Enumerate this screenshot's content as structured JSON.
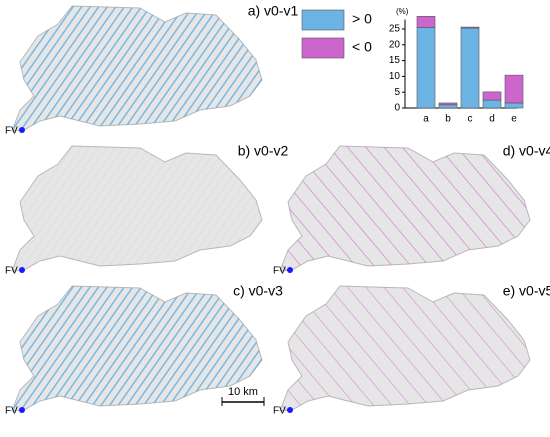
{
  "chart_data": {
    "type": "bar",
    "stacked": true,
    "y_unit": "(%)",
    "categories": [
      "a",
      "b",
      "c",
      "d",
      "e"
    ],
    "series": [
      {
        "name": "> 0",
        "color": "#6cb4e4",
        "values": [
          25.5,
          1.0,
          25.3,
          2.5,
          1.6
        ]
      },
      {
        "name": "< 0",
        "color": "#cc66cc",
        "values": [
          3.5,
          0.6,
          0.3,
          2.6,
          8.8
        ]
      }
    ],
    "ylim": [
      0,
      28
    ],
    "yticks": [
      0,
      5,
      10,
      15,
      20,
      25
    ]
  },
  "maps": [
    {
      "label": "a) v0-v1",
      "site": "FV"
    },
    {
      "label": "b) v0-v2",
      "site": "FV"
    },
    {
      "label": "c) v0-v3",
      "site": "FV"
    },
    {
      "label": "d) v0-v4",
      "site": "FV"
    },
    {
      "label": "e) v0-v5",
      "site": "FV"
    }
  ],
  "scale_bar": "10 km"
}
